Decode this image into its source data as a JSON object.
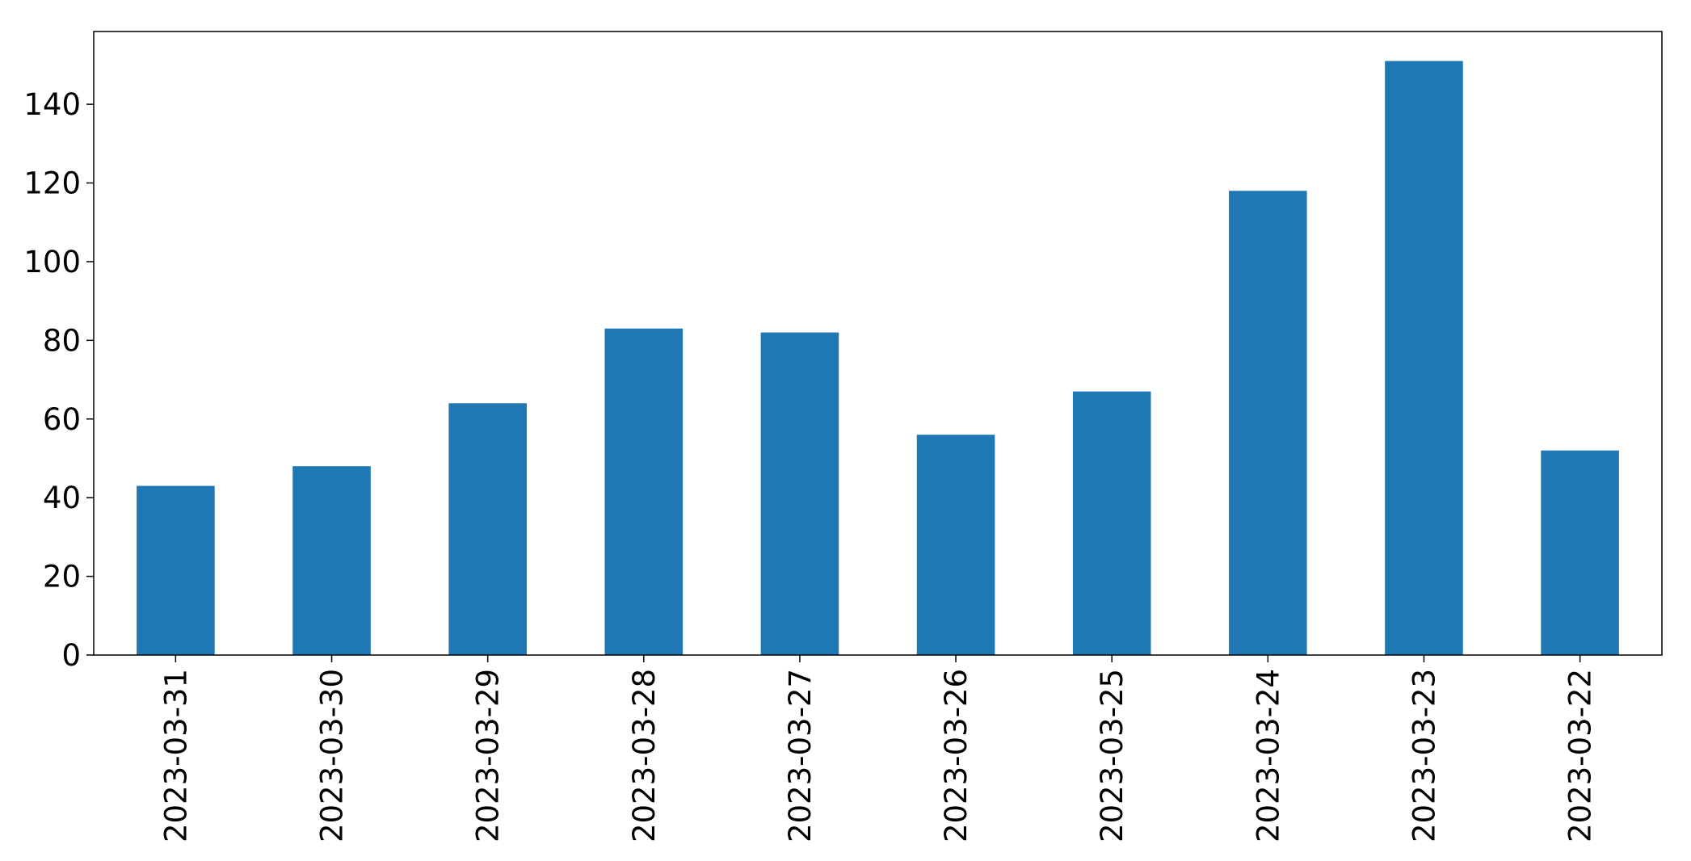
{
  "chart_data": {
    "type": "bar",
    "title": "",
    "xlabel": "",
    "ylabel": "",
    "categories": [
      "2023-03-31",
      "2023-03-30",
      "2023-03-29",
      "2023-03-28",
      "2023-03-27",
      "2023-03-26",
      "2023-03-25",
      "2023-03-24",
      "2023-03-23",
      "2023-03-22"
    ],
    "values": [
      43,
      48,
      64,
      83,
      82,
      56,
      67,
      118,
      151,
      52
    ],
    "ylim": [
      0,
      158.5
    ],
    "yticks": [
      0,
      20,
      40,
      60,
      80,
      100,
      120,
      140
    ],
    "ytick_labels": [
      "0",
      "20",
      "40",
      "60",
      "80",
      "100",
      "120",
      "140"
    ],
    "xtick_rotation": "vertical",
    "grid": false,
    "legend": "none",
    "bar_color": "#1f77b4"
  }
}
